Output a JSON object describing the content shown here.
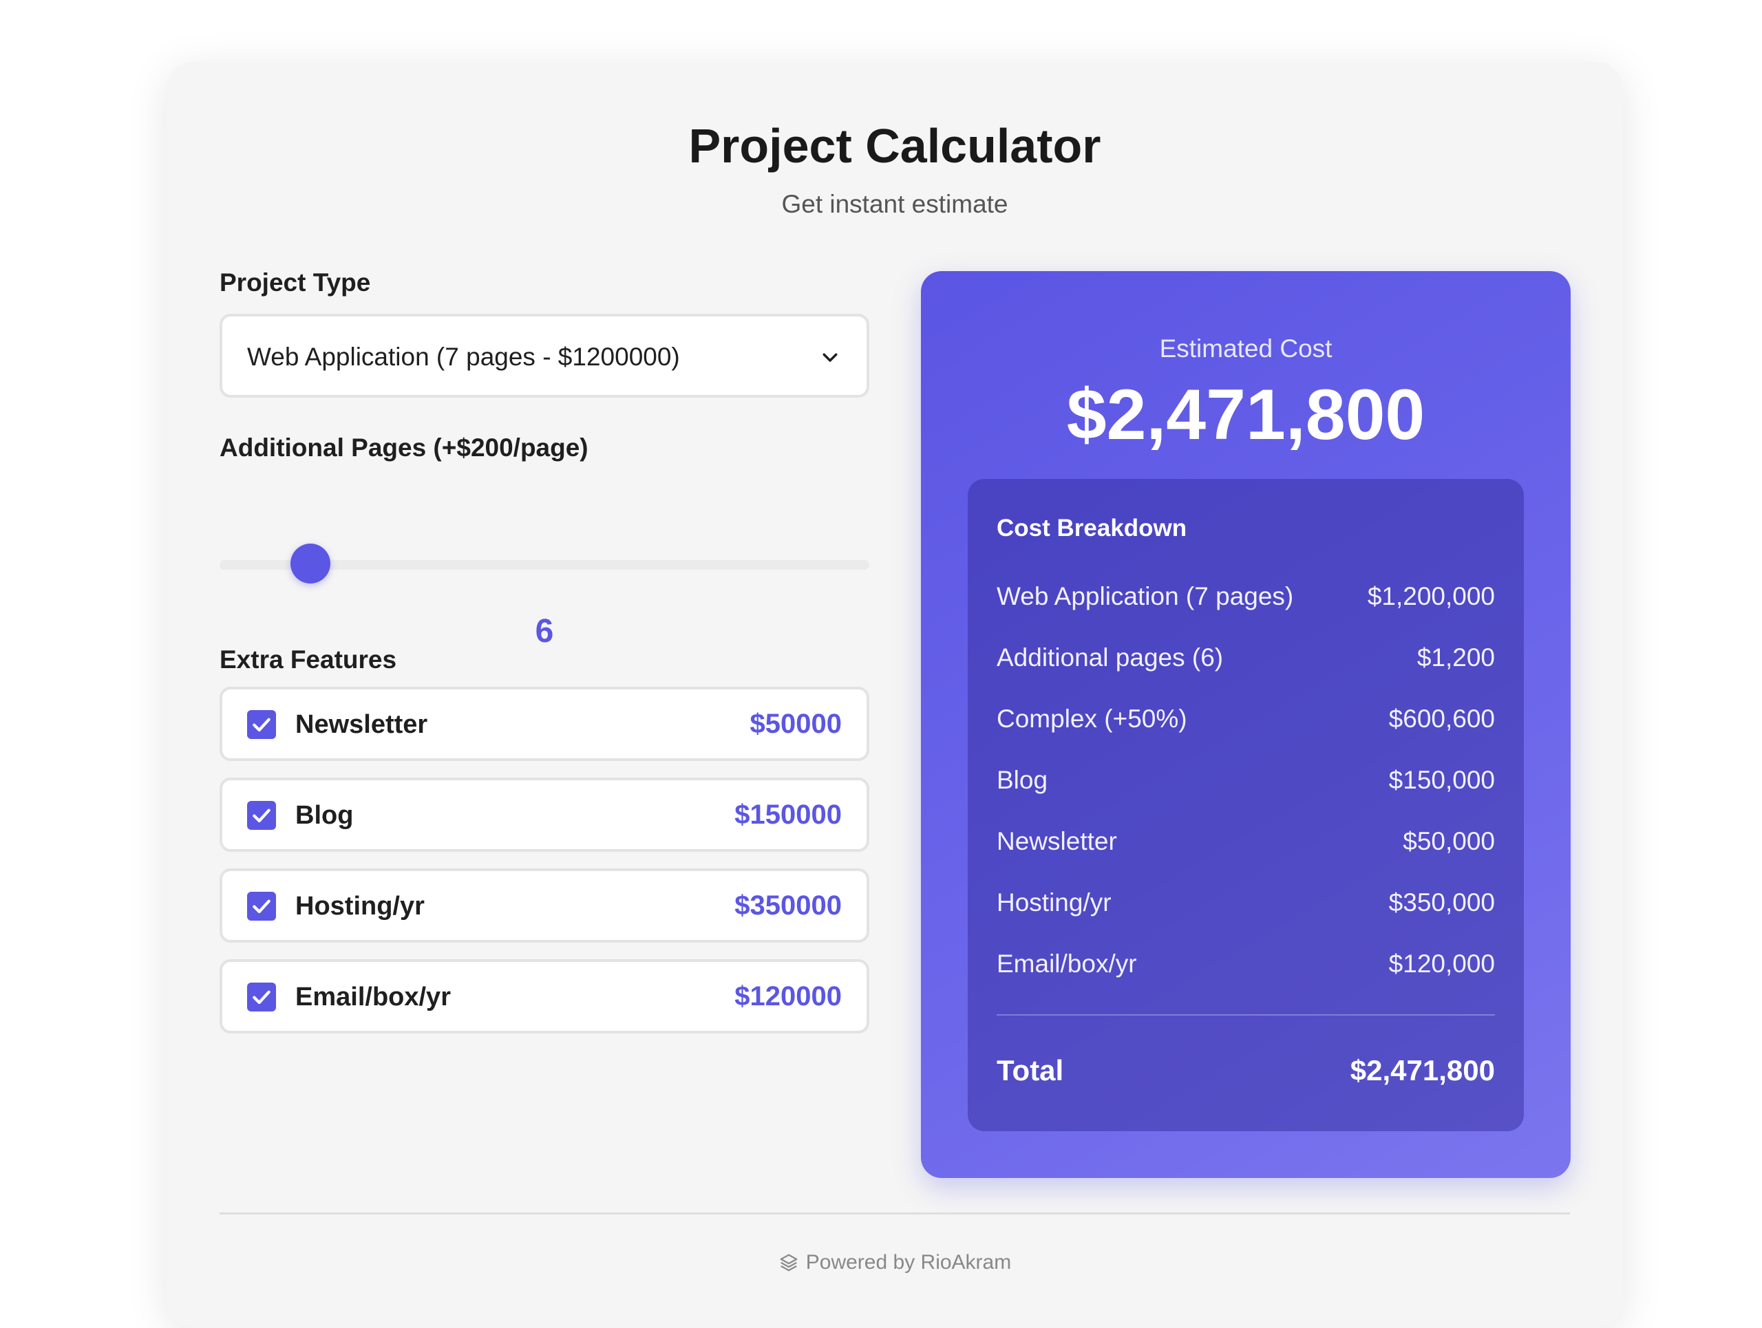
{
  "header": {
    "title": "Project Calculator",
    "subtitle": "Get instant estimate"
  },
  "form": {
    "project_type_label": "Project Type",
    "project_type_value": "Web Application (7 pages - $1200000)",
    "additional_pages_label": "Additional Pages (+$200/page)",
    "additional_pages_value": "6",
    "additional_pages_slider_fraction": 0.14,
    "extra_features_label": "Extra Features",
    "features": [
      {
        "name": "Newsletter",
        "price": "$50000",
        "checked": true
      },
      {
        "name": "Blog",
        "price": "$150000",
        "checked": true
      },
      {
        "name": "Hosting/yr",
        "price": "$350000",
        "checked": true
      },
      {
        "name": "Email/box/yr",
        "price": "$120000",
        "checked": true
      }
    ]
  },
  "estimate": {
    "label": "Estimated Cost",
    "value": "$2,471,800",
    "breakdown_title": "Cost Breakdown",
    "rows": [
      {
        "label": "Web Application (7 pages)",
        "amount": "$1,200,000"
      },
      {
        "label": "Additional pages (6)",
        "amount": "$1,200"
      },
      {
        "label": "Complex (+50%)",
        "amount": "$600,600"
      },
      {
        "label": "Blog",
        "amount": "$150,000"
      },
      {
        "label": "Newsletter",
        "amount": "$50,000"
      },
      {
        "label": "Hosting/yr",
        "amount": "$350,000"
      },
      {
        "label": "Email/box/yr",
        "amount": "$120,000"
      }
    ],
    "total_label": "Total",
    "total_value": "$2,471,800"
  },
  "footer": {
    "text": "Powered by RioAkram",
    "icon": "layers-icon"
  },
  "colors": {
    "accent": "#5b56e3",
    "card_background": "#f5f5f5",
    "estimate_gradient_start": "#5b55e3",
    "estimate_gradient_end": "#7b75ee"
  }
}
